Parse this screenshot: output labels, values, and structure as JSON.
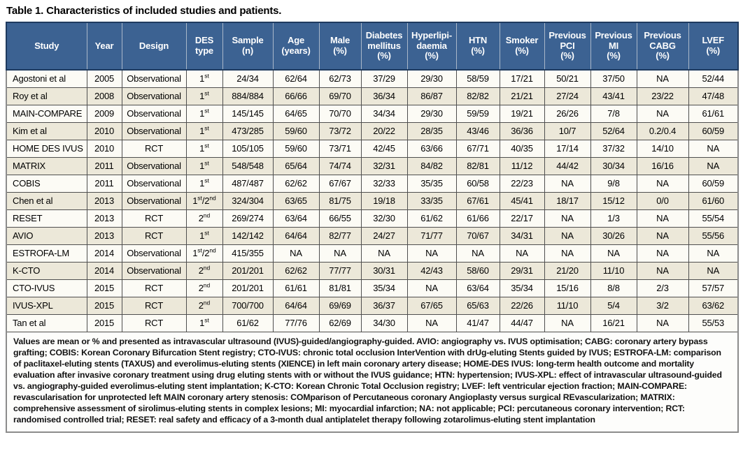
{
  "title": "Table 1. Characteristics of included studies and patients.",
  "colors": {
    "header_bg": "#3C6292",
    "header_border": "#1E3A5F",
    "header_separator": "#A9B7C9",
    "row_bg": "#FCFBF5",
    "row_alt_bg": "#ECE8D9",
    "cell_border": "#4F4F4F",
    "outer_border": "#8C8C8C",
    "header_text": "#FFFFFF",
    "body_text": "#000000"
  },
  "table": {
    "columns": [
      {
        "key": "study",
        "label": "Study",
        "label_lines": [
          "Study"
        ]
      },
      {
        "key": "year",
        "label": "Year",
        "label_lines": [
          "Year"
        ]
      },
      {
        "key": "design",
        "label": "Design",
        "label_lines": [
          "Design"
        ]
      },
      {
        "key": "des_type",
        "label": "DES type",
        "label_lines": [
          "DES",
          "type"
        ]
      },
      {
        "key": "sample",
        "label": "Sample (n)",
        "label_lines": [
          "Sample",
          "(n)"
        ]
      },
      {
        "key": "age",
        "label": "Age (years)",
        "label_lines": [
          "Age",
          "(years)"
        ]
      },
      {
        "key": "male",
        "label": "Male (%)",
        "label_lines": [
          "Male",
          "(%)"
        ]
      },
      {
        "key": "diabetes",
        "label": "Diabetes mellitus (%)",
        "label_lines": [
          "Diabetes",
          "mellitus",
          "(%)"
        ]
      },
      {
        "key": "hyperlipidaemia",
        "label": "Hyperlipi-daemia (%)",
        "label_lines": [
          "Hyperlipi-",
          "daemia",
          "(%)"
        ]
      },
      {
        "key": "htn",
        "label": "HTN (%)",
        "label_lines": [
          "HTN",
          "(%)"
        ]
      },
      {
        "key": "smoker",
        "label": "Smoker (%)",
        "label_lines": [
          "Smoker",
          "(%)"
        ]
      },
      {
        "key": "previous_pci",
        "label": "Previous PCI (%)",
        "label_lines": [
          "Previous",
          "PCI",
          "(%)"
        ]
      },
      {
        "key": "previous_mi",
        "label": "Previous MI (%)",
        "label_lines": [
          "Previous",
          "MI",
          "(%)"
        ]
      },
      {
        "key": "previous_cabg",
        "label": "Previous CABG (%)",
        "label_lines": [
          "Previous",
          "CABG",
          "(%)"
        ]
      },
      {
        "key": "lvef",
        "label": "LVEF (%)",
        "label_lines": [
          "LVEF",
          "(%)"
        ]
      }
    ],
    "rows": [
      {
        "study": "Agostoni et al",
        "year": "2005",
        "design": "Observational",
        "des_type": "1st",
        "sample": "24/34",
        "age": "62/64",
        "male": "62/73",
        "diabetes": "37/29",
        "hyperlipidaemia": "29/30",
        "htn": "58/59",
        "smoker": "17/21",
        "previous_pci": "50/21",
        "previous_mi": "37/50",
        "previous_cabg": "NA",
        "lvef": "52/44"
      },
      {
        "study": "Roy et al",
        "year": "2008",
        "design": "Observational",
        "des_type": "1st",
        "sample": "884/884",
        "age": "66/66",
        "male": "69/70",
        "diabetes": "36/34",
        "hyperlipidaemia": "86/87",
        "htn": "82/82",
        "smoker": "21/21",
        "previous_pci": "27/24",
        "previous_mi": "43/41",
        "previous_cabg": "23/22",
        "lvef": "47/48"
      },
      {
        "study": "MAIN-COMPARE",
        "year": "2009",
        "design": "Observational",
        "des_type": "1st",
        "sample": "145/145",
        "age": "64/65",
        "male": "70/70",
        "diabetes": "34/34",
        "hyperlipidaemia": "29/30",
        "htn": "59/59",
        "smoker": "19/21",
        "previous_pci": "26/26",
        "previous_mi": "7/8",
        "previous_cabg": "NA",
        "lvef": "61/61"
      },
      {
        "study": "Kim et al",
        "year": "2010",
        "design": "Observational",
        "des_type": "1st",
        "sample": "473/285",
        "age": "59/60",
        "male": "73/72",
        "diabetes": "20/22",
        "hyperlipidaemia": "28/35",
        "htn": "43/46",
        "smoker": "36/36",
        "previous_pci": "10/7",
        "previous_mi": "52/64",
        "previous_cabg": "0.2/0.4",
        "lvef": "60/59"
      },
      {
        "study": "HOME DES IVUS",
        "year": "2010",
        "design": "RCT",
        "des_type": "1st",
        "sample": "105/105",
        "age": "59/60",
        "male": "73/71",
        "diabetes": "42/45",
        "hyperlipidaemia": "63/66",
        "htn": "67/71",
        "smoker": "40/35",
        "previous_pci": "17/14",
        "previous_mi": "37/32",
        "previous_cabg": "14/10",
        "lvef": "NA"
      },
      {
        "study": "MATRIX",
        "year": "2011",
        "design": "Observational",
        "des_type": "1st",
        "sample": "548/548",
        "age": "65/64",
        "male": "74/74",
        "diabetes": "32/31",
        "hyperlipidaemia": "84/82",
        "htn": "82/81",
        "smoker": "11/12",
        "previous_pci": "44/42",
        "previous_mi": "30/34",
        "previous_cabg": "16/16",
        "lvef": "NA"
      },
      {
        "study": "COBIS",
        "year": "2011",
        "design": "Observational",
        "des_type": "1st",
        "sample": "487/487",
        "age": "62/62",
        "male": "67/67",
        "diabetes": "32/33",
        "hyperlipidaemia": "35/35",
        "htn": "60/58",
        "smoker": "22/23",
        "previous_pci": "NA",
        "previous_mi": "9/8",
        "previous_cabg": "NA",
        "lvef": "60/59"
      },
      {
        "study": "Chen et al",
        "year": "2013",
        "design": "Observational",
        "des_type": "1st/2nd",
        "sample": "324/304",
        "age": "63/65",
        "male": "81/75",
        "diabetes": "19/18",
        "hyperlipidaemia": "33/35",
        "htn": "67/61",
        "smoker": "45/41",
        "previous_pci": "18/17",
        "previous_mi": "15/12",
        "previous_cabg": "0/0",
        "lvef": "61/60"
      },
      {
        "study": "RESET",
        "year": "2013",
        "design": "RCT",
        "des_type": "2nd",
        "sample": "269/274",
        "age": "63/64",
        "male": "66/55",
        "diabetes": "32/30",
        "hyperlipidaemia": "61/62",
        "htn": "61/66",
        "smoker": "22/17",
        "previous_pci": "NA",
        "previous_mi": "1/3",
        "previous_cabg": "NA",
        "lvef": "55/54"
      },
      {
        "study": "AVIO",
        "year": "2013",
        "design": "RCT",
        "des_type": "1st",
        "sample": "142/142",
        "age": "64/64",
        "male": "82/77",
        "diabetes": "24/27",
        "hyperlipidaemia": "71/77",
        "htn": "70/67",
        "smoker": "34/31",
        "previous_pci": "NA",
        "previous_mi": "30/26",
        "previous_cabg": "NA",
        "lvef": "55/56"
      },
      {
        "study": "ESTROFA-LM",
        "year": "2014",
        "design": "Observational",
        "des_type": "1st/2nd",
        "sample": "415/355",
        "age": "NA",
        "male": "NA",
        "diabetes": "NA",
        "hyperlipidaemia": "NA",
        "htn": "NA",
        "smoker": "NA",
        "previous_pci": "NA",
        "previous_mi": "NA",
        "previous_cabg": "NA",
        "lvef": "NA"
      },
      {
        "study": "K-CTO",
        "year": "2014",
        "design": "Observational",
        "des_type": "2nd",
        "sample": "201/201",
        "age": "62/62",
        "male": "77/77",
        "diabetes": "30/31",
        "hyperlipidaemia": "42/43",
        "htn": "58/60",
        "smoker": "29/31",
        "previous_pci": "21/20",
        "previous_mi": "11/10",
        "previous_cabg": "NA",
        "lvef": "NA"
      },
      {
        "study": "CTO-IVUS",
        "year": "2015",
        "design": "RCT",
        "des_type": "2nd",
        "sample": "201/201",
        "age": "61/61",
        "male": "81/81",
        "diabetes": "35/34",
        "hyperlipidaemia": "NA",
        "htn": "63/64",
        "smoker": "35/34",
        "previous_pci": "15/16",
        "previous_mi": "8/8",
        "previous_cabg": "2/3",
        "lvef": "57/57"
      },
      {
        "study": "IVUS-XPL",
        "year": "2015",
        "design": "RCT",
        "des_type": "2nd",
        "sample": "700/700",
        "age": "64/64",
        "male": "69/69",
        "diabetes": "36/37",
        "hyperlipidaemia": "67/65",
        "htn": "65/63",
        "smoker": "22/26",
        "previous_pci": "11/10",
        "previous_mi": "5/4",
        "previous_cabg": "3/2",
        "lvef": "63/62"
      },
      {
        "study": "Tan et al",
        "year": "2015",
        "design": "RCT",
        "des_type": "1st",
        "sample": "61/62",
        "age": "77/76",
        "male": "62/69",
        "diabetes": "34/30",
        "hyperlipidaemia": "NA",
        "htn": "41/47",
        "smoker": "44/47",
        "previous_pci": "NA",
        "previous_mi": "16/21",
        "previous_cabg": "NA",
        "lvef": "55/53"
      }
    ],
    "footnote": "Values are mean or % and presented as intravascular ultrasound (IVUS)-guided/angiography-guided. AVIO: angiography vs. IVUS optimisation; CABG: coronary artery bypass grafting; COBIS: Korean Coronary Bifurcation Stent registry; CTO-IVUS: chronic total occlusion InterVention with drUg-eluting Stents guided by IVUS; ESTROFA-LM: comparison of paclitaxel-eluting stents (TAXUS) and everolimus-eluting stents (XIENCE) in left main coronary artery disease; HOME-DES IVUS: long-term health outcome and mortality evaluation after invasive coronary treatment using drug eluting stents with or without the IVUS guidance; HTN: hypertension; IVUS-XPL: effect of intravascular ultrasound-guided vs. angiography-guided everolimus-eluting stent implantation; K-CTO: Korean Chronic Total Occlusion registry; LVEF: left ventricular ejection fraction; MAIN-COMPARE: revascularisation for unprotected left MAIN coronary artery stenosis: COMparison of Percutaneous coronary Angioplasty versus surgical REvascularization; MATRIX: comprehensive assessment of sirolimus-eluting stents in complex lesions; MI: myocardial infarction; NA: not applicable; PCI: percutaneous coronary intervention; RCT: randomised controlled trial; RESET: real safety and efficacy of a 3-month dual antiplatelet therapy following zotarolimus-eluting stent implantation"
  }
}
